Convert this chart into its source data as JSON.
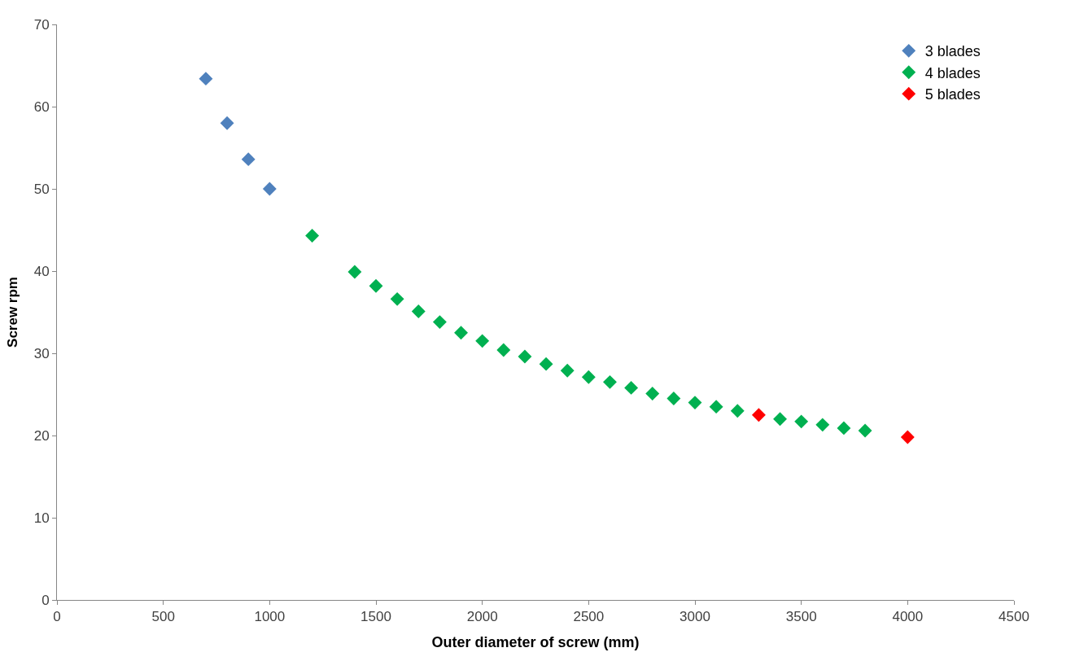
{
  "chart_data": {
    "type": "scatter",
    "xlabel": "Outer diameter of screw (mm)",
    "ylabel": "Screw rpm",
    "xlim": [
      0,
      4500
    ],
    "xticks": [
      0,
      500,
      1000,
      1500,
      2000,
      2500,
      3000,
      3500,
      4000,
      4500
    ],
    "ylim": [
      0,
      70
    ],
    "yticks": [
      0,
      10,
      20,
      30,
      40,
      50,
      60,
      70
    ],
    "grid": false,
    "legend": "top right",
    "marker": "diamond",
    "series": [
      {
        "name": "3 blades",
        "color": "#4f81bd",
        "x": [
          700,
          800,
          900,
          1000
        ],
        "values": [
          63.4,
          58.0,
          53.6,
          50.0
        ]
      },
      {
        "name": "4 blades",
        "color": "#00b050",
        "x": [
          1200,
          1400,
          1500,
          1600,
          1700,
          1800,
          1900,
          2000,
          2100,
          2200,
          2300,
          2400,
          2500,
          2600,
          2700,
          2800,
          2900,
          3000,
          3100,
          3200,
          3400,
          3500,
          3600,
          3700,
          3800
        ],
        "values": [
          44.3,
          39.9,
          38.2,
          36.6,
          35.1,
          33.8,
          32.5,
          31.5,
          30.4,
          29.6,
          28.7,
          27.9,
          27.1,
          26.5,
          25.8,
          25.1,
          24.5,
          24.0,
          23.5,
          23.0,
          22.0,
          21.7,
          21.3,
          20.9,
          20.6
        ]
      },
      {
        "name": "5 blades",
        "color": "#ff0000",
        "x": [
          3300,
          4000
        ],
        "values": [
          22.5,
          19.8
        ]
      }
    ]
  }
}
